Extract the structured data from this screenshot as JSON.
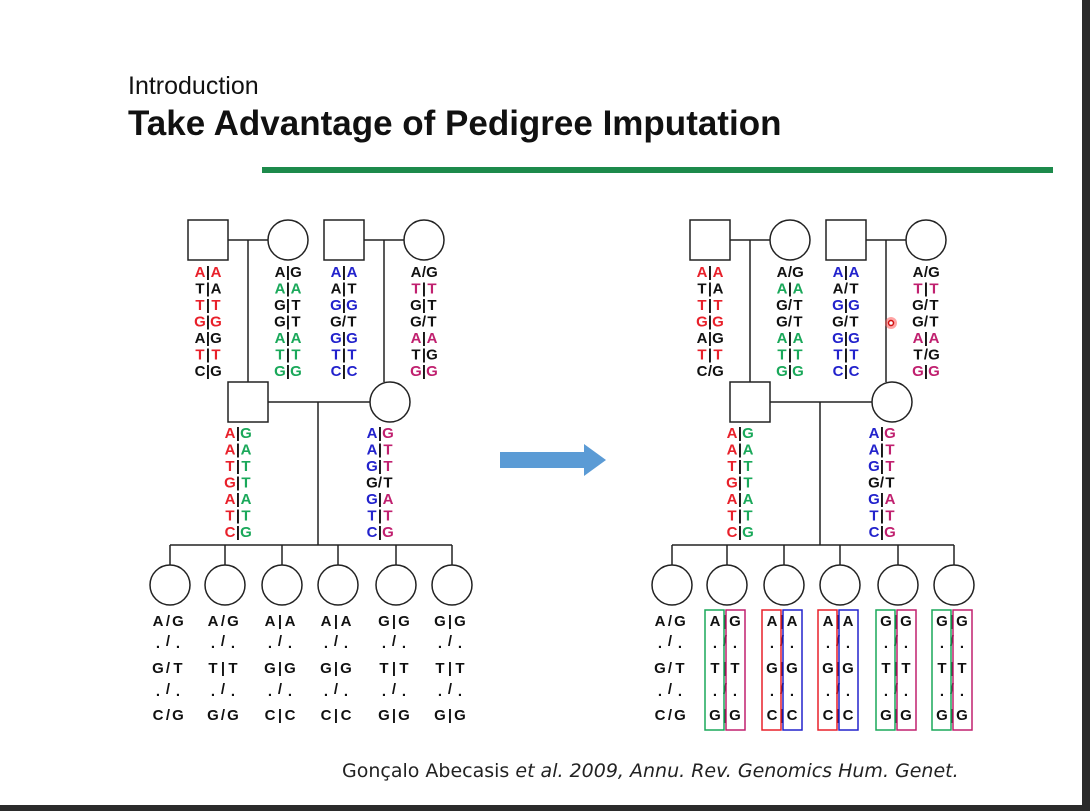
{
  "slide": {
    "subtitle": "Introduction",
    "title": "Take Advantage of Pedigree Imputation",
    "citation_author": "Gonçalo Abecasis ",
    "citation_etal": "et al. 2009, Annu. Rev. Genomics Hum. Genet.",
    "accent_color": "#1d8a4b"
  },
  "colors": {
    "red": "#e8202a",
    "green": "#1aa85a",
    "blue": "#2222cc",
    "magenta": "#c0206f",
    "black": "#111111",
    "arrow": "#5b9bd5"
  },
  "left": {
    "grandparents": [
      {
        "sex": "male",
        "rows": [
          [
            "A",
            "A",
            "r",
            "r"
          ],
          [
            "T",
            "A",
            "k",
            "k"
          ],
          [
            "T",
            "T",
            "r",
            "r"
          ],
          [
            "G",
            "G",
            "r",
            "r"
          ],
          [
            "A",
            "G",
            "k",
            "k"
          ],
          [
            "T",
            "T",
            "r",
            "r"
          ],
          [
            "C",
            "G",
            "k",
            "k"
          ]
        ],
        "sep": [
          "|",
          "|",
          "|",
          "|",
          "|",
          "|",
          "|"
        ]
      },
      {
        "sex": "female",
        "rows": [
          [
            "A",
            "G",
            "k",
            "k"
          ],
          [
            "A",
            "A",
            "g",
            "g"
          ],
          [
            "G",
            "T",
            "k",
            "k"
          ],
          [
            "G",
            "T",
            "k",
            "k"
          ],
          [
            "A",
            "A",
            "g",
            "g"
          ],
          [
            "T",
            "T",
            "g",
            "g"
          ],
          [
            "G",
            "G",
            "g",
            "g"
          ]
        ],
        "sep": [
          "|",
          "|",
          "|",
          "|",
          "|",
          "|",
          "|"
        ]
      },
      {
        "sex": "male",
        "rows": [
          [
            "A",
            "A",
            "b",
            "b"
          ],
          [
            "A",
            "T",
            "k",
            "k"
          ],
          [
            "G",
            "G",
            "b",
            "b"
          ],
          [
            "G",
            "T",
            "k",
            "k"
          ],
          [
            "G",
            "G",
            "b",
            "b"
          ],
          [
            "T",
            "T",
            "b",
            "b"
          ],
          [
            "C",
            "C",
            "b",
            "b"
          ]
        ],
        "sep": [
          "|",
          "|",
          "|",
          "/",
          "|",
          "|",
          "|"
        ]
      },
      {
        "sex": "female",
        "rows": [
          [
            "A",
            "G",
            "k",
            "k"
          ],
          [
            "T",
            "T",
            "m",
            "m"
          ],
          [
            "G",
            "T",
            "k",
            "k"
          ],
          [
            "G",
            "T",
            "k",
            "k"
          ],
          [
            "A",
            "A",
            "m",
            "m"
          ],
          [
            "T",
            "G",
            "k",
            "k"
          ],
          [
            "G",
            "G",
            "m",
            "m"
          ]
        ],
        "sep": [
          "/",
          "|",
          "|",
          "/",
          "|",
          "|",
          "|"
        ]
      }
    ],
    "parents": [
      {
        "sex": "male",
        "rows": [
          [
            "A",
            "G",
            "r",
            "g"
          ],
          [
            "A",
            "A",
            "r",
            "g"
          ],
          [
            "T",
            "T",
            "r",
            "g"
          ],
          [
            "G",
            "T",
            "r",
            "g"
          ],
          [
            "A",
            "A",
            "r",
            "g"
          ],
          [
            "T",
            "T",
            "r",
            "g"
          ],
          [
            "C",
            "G",
            "r",
            "g"
          ]
        ],
        "sep": [
          "|",
          "|",
          "|",
          "|",
          "|",
          "|",
          "|"
        ]
      },
      {
        "sex": "female",
        "rows": [
          [
            "A",
            "G",
            "b",
            "m"
          ],
          [
            "A",
            "T",
            "b",
            "m"
          ],
          [
            "G",
            "T",
            "b",
            "m"
          ],
          [
            "G",
            "T",
            "k",
            "k"
          ],
          [
            "G",
            "A",
            "b",
            "m"
          ],
          [
            "T",
            "T",
            "b",
            "m"
          ],
          [
            "C",
            "G",
            "b",
            "m"
          ]
        ],
        "sep": [
          "|",
          "|",
          "|",
          "/",
          "|",
          "|",
          "|"
        ]
      }
    ],
    "children": [
      {
        "rows": [
          [
            "A",
            "G"
          ],
          [
            ".",
            "."
          ],
          [
            "G",
            "T"
          ],
          [
            ".",
            "."
          ],
          [
            "C",
            "G"
          ]
        ],
        "sep": [
          "/",
          "/",
          "/",
          "/",
          "/"
        ]
      },
      {
        "rows": [
          [
            "A",
            "G"
          ],
          [
            ".",
            "."
          ],
          [
            "T",
            "T"
          ],
          [
            ".",
            "."
          ],
          [
            "G",
            "G"
          ]
        ],
        "sep": [
          "/",
          "/",
          "|",
          "/",
          "/"
        ]
      },
      {
        "rows": [
          [
            "A",
            "A"
          ],
          [
            ".",
            "."
          ],
          [
            "G",
            "G"
          ],
          [
            ".",
            "."
          ],
          [
            "C",
            "C"
          ]
        ],
        "sep": [
          "|",
          "/",
          "|",
          "/",
          "|"
        ]
      },
      {
        "rows": [
          [
            "A",
            "A"
          ],
          [
            ".",
            "."
          ],
          [
            "G",
            "G"
          ],
          [
            ".",
            "."
          ],
          [
            "C",
            "C"
          ]
        ],
        "sep": [
          "|",
          "/",
          "|",
          "/",
          "|"
        ]
      },
      {
        "rows": [
          [
            "G",
            "G"
          ],
          [
            ".",
            "."
          ],
          [
            "T",
            "T"
          ],
          [
            ".",
            "."
          ],
          [
            "G",
            "G"
          ]
        ],
        "sep": [
          "|",
          "/",
          "|",
          "/",
          "|"
        ]
      },
      {
        "rows": [
          [
            "G",
            "G"
          ],
          [
            ".",
            "."
          ],
          [
            "T",
            "T"
          ],
          [
            ".",
            "."
          ],
          [
            "G",
            "G"
          ]
        ],
        "sep": [
          "|",
          "/",
          "|",
          "/",
          "|"
        ]
      }
    ]
  },
  "right": {
    "grandparents": [
      {
        "sex": "male",
        "rows": [
          [
            "A",
            "A",
            "r",
            "r"
          ],
          [
            "T",
            "A",
            "k",
            "k"
          ],
          [
            "T",
            "T",
            "r",
            "r"
          ],
          [
            "G",
            "G",
            "r",
            "r"
          ],
          [
            "A",
            "G",
            "k",
            "k"
          ],
          [
            "T",
            "T",
            "r",
            "r"
          ],
          [
            "C",
            "G",
            "k",
            "k"
          ]
        ],
        "sep": [
          "|",
          "|",
          "|",
          "|",
          "|",
          "|",
          "/"
        ]
      },
      {
        "sex": "female",
        "rows": [
          [
            "A",
            "G",
            "k",
            "k"
          ],
          [
            "A",
            "A",
            "g",
            "g"
          ],
          [
            "G",
            "T",
            "k",
            "k"
          ],
          [
            "G",
            "T",
            "k",
            "k"
          ],
          [
            "A",
            "A",
            "g",
            "g"
          ],
          [
            "T",
            "T",
            "g",
            "g"
          ],
          [
            "G",
            "G",
            "g",
            "g"
          ]
        ],
        "sep": [
          "/",
          "|",
          "/",
          "/",
          "|",
          "|",
          "|"
        ]
      },
      {
        "sex": "male",
        "rows": [
          [
            "A",
            "A",
            "b",
            "b"
          ],
          [
            "A",
            "T",
            "k",
            "k"
          ],
          [
            "G",
            "G",
            "b",
            "b"
          ],
          [
            "G",
            "T",
            "k",
            "k"
          ],
          [
            "G",
            "G",
            "b",
            "b"
          ],
          [
            "T",
            "T",
            "b",
            "b"
          ],
          [
            "C",
            "C",
            "b",
            "b"
          ]
        ],
        "sep": [
          "|",
          "/",
          "|",
          "/",
          "|",
          "|",
          "|"
        ]
      },
      {
        "sex": "female",
        "rows": [
          [
            "A",
            "G",
            "k",
            "k"
          ],
          [
            "T",
            "T",
            "m",
            "m"
          ],
          [
            "G",
            "T",
            "k",
            "k"
          ],
          [
            "G",
            "T",
            "k",
            "k"
          ],
          [
            "A",
            "A",
            "m",
            "m"
          ],
          [
            "T",
            "G",
            "k",
            "k"
          ],
          [
            "G",
            "G",
            "m",
            "m"
          ]
        ],
        "sep": [
          "/",
          "|",
          "/",
          "/",
          "|",
          "/",
          "|"
        ]
      }
    ],
    "parents": [
      {
        "sex": "male",
        "rows": [
          [
            "A",
            "G",
            "r",
            "g"
          ],
          [
            "A",
            "A",
            "r",
            "g"
          ],
          [
            "T",
            "T",
            "r",
            "g"
          ],
          [
            "G",
            "T",
            "r",
            "g"
          ],
          [
            "A",
            "A",
            "r",
            "g"
          ],
          [
            "T",
            "T",
            "r",
            "g"
          ],
          [
            "C",
            "G",
            "r",
            "g"
          ]
        ],
        "sep": [
          "|",
          "|",
          "|",
          "|",
          "|",
          "|",
          "|"
        ]
      },
      {
        "sex": "female",
        "rows": [
          [
            "A",
            "G",
            "b",
            "m"
          ],
          [
            "A",
            "T",
            "b",
            "m"
          ],
          [
            "G",
            "T",
            "b",
            "m"
          ],
          [
            "G",
            "T",
            "k",
            "k"
          ],
          [
            "G",
            "A",
            "b",
            "m"
          ],
          [
            "T",
            "T",
            "b",
            "m"
          ],
          [
            "C",
            "G",
            "b",
            "m"
          ]
        ],
        "sep": [
          "|",
          "|",
          "|",
          "/",
          "|",
          "|",
          "|"
        ]
      }
    ],
    "children": [
      {
        "rows": [
          [
            "A",
            "G"
          ],
          [
            ".",
            "."
          ],
          [
            "G",
            "T"
          ],
          [
            ".",
            "."
          ],
          [
            "C",
            "G"
          ]
        ],
        "sep": [
          "/",
          "/",
          "/",
          "/",
          "/"
        ],
        "box": null
      },
      {
        "rows": [
          [
            "A",
            "G"
          ],
          [
            ".",
            "."
          ],
          [
            "T",
            "T"
          ],
          [
            ".",
            "."
          ],
          [
            "G",
            "G"
          ]
        ],
        "sep": [
          "|",
          "/",
          "|",
          "/",
          "|"
        ],
        "box": [
          "green",
          "magenta"
        ]
      },
      {
        "rows": [
          [
            "A",
            "A"
          ],
          [
            ".",
            "."
          ],
          [
            "G",
            "G"
          ],
          [
            ".",
            "."
          ],
          [
            "C",
            "C"
          ]
        ],
        "sep": [
          "|",
          "/",
          "|",
          "/",
          "|"
        ],
        "box": [
          "red",
          "blue"
        ]
      },
      {
        "rows": [
          [
            "A",
            "A"
          ],
          [
            ".",
            "."
          ],
          [
            "G",
            "G"
          ],
          [
            ".",
            "."
          ],
          [
            "C",
            "C"
          ]
        ],
        "sep": [
          "|",
          "/",
          "|",
          "/",
          "|"
        ],
        "box": [
          "red",
          "blue"
        ]
      },
      {
        "rows": [
          [
            "G",
            "G"
          ],
          [
            ".",
            "."
          ],
          [
            "T",
            "T"
          ],
          [
            ".",
            "."
          ],
          [
            "G",
            "G"
          ]
        ],
        "sep": [
          "|",
          "/",
          "|",
          "/",
          "|"
        ],
        "box": [
          "green",
          "magenta"
        ]
      },
      {
        "rows": [
          [
            "G",
            "G"
          ],
          [
            ".",
            "."
          ],
          [
            "T",
            "T"
          ],
          [
            ".",
            "."
          ],
          [
            "G",
            "G"
          ]
        ],
        "sep": [
          "|",
          "/",
          "|",
          "/",
          "|"
        ],
        "box": [
          "green",
          "magenta"
        ]
      }
    ]
  }
}
